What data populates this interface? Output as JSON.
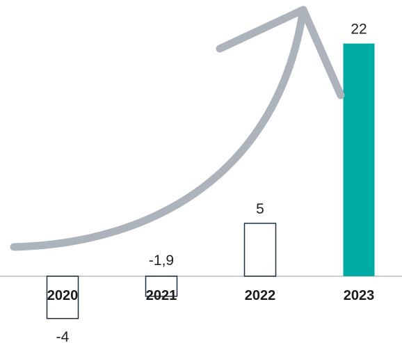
{
  "chart_data": {
    "type": "bar",
    "categories": [
      "2020",
      "2021",
      "2022",
      "2023"
    ],
    "values": [
      -4,
      -1.9,
      5,
      22
    ],
    "data_labels": [
      "-4",
      "-1,9",
      "5",
      "22"
    ],
    "title": "",
    "xlabel": "",
    "ylabel": "",
    "ylim": [
      -4,
      22
    ],
    "grid": false,
    "legend": "none",
    "highlight_category": "2023",
    "colors": {
      "highlight_fill": "#00ABA6",
      "outline": "#1F2D3D",
      "baseline": "#B9BEC4",
      "arrow": "#ADB3BA",
      "label_text": "#222222"
    },
    "decorations": {
      "arrow": "growth-arrow-icon"
    }
  }
}
